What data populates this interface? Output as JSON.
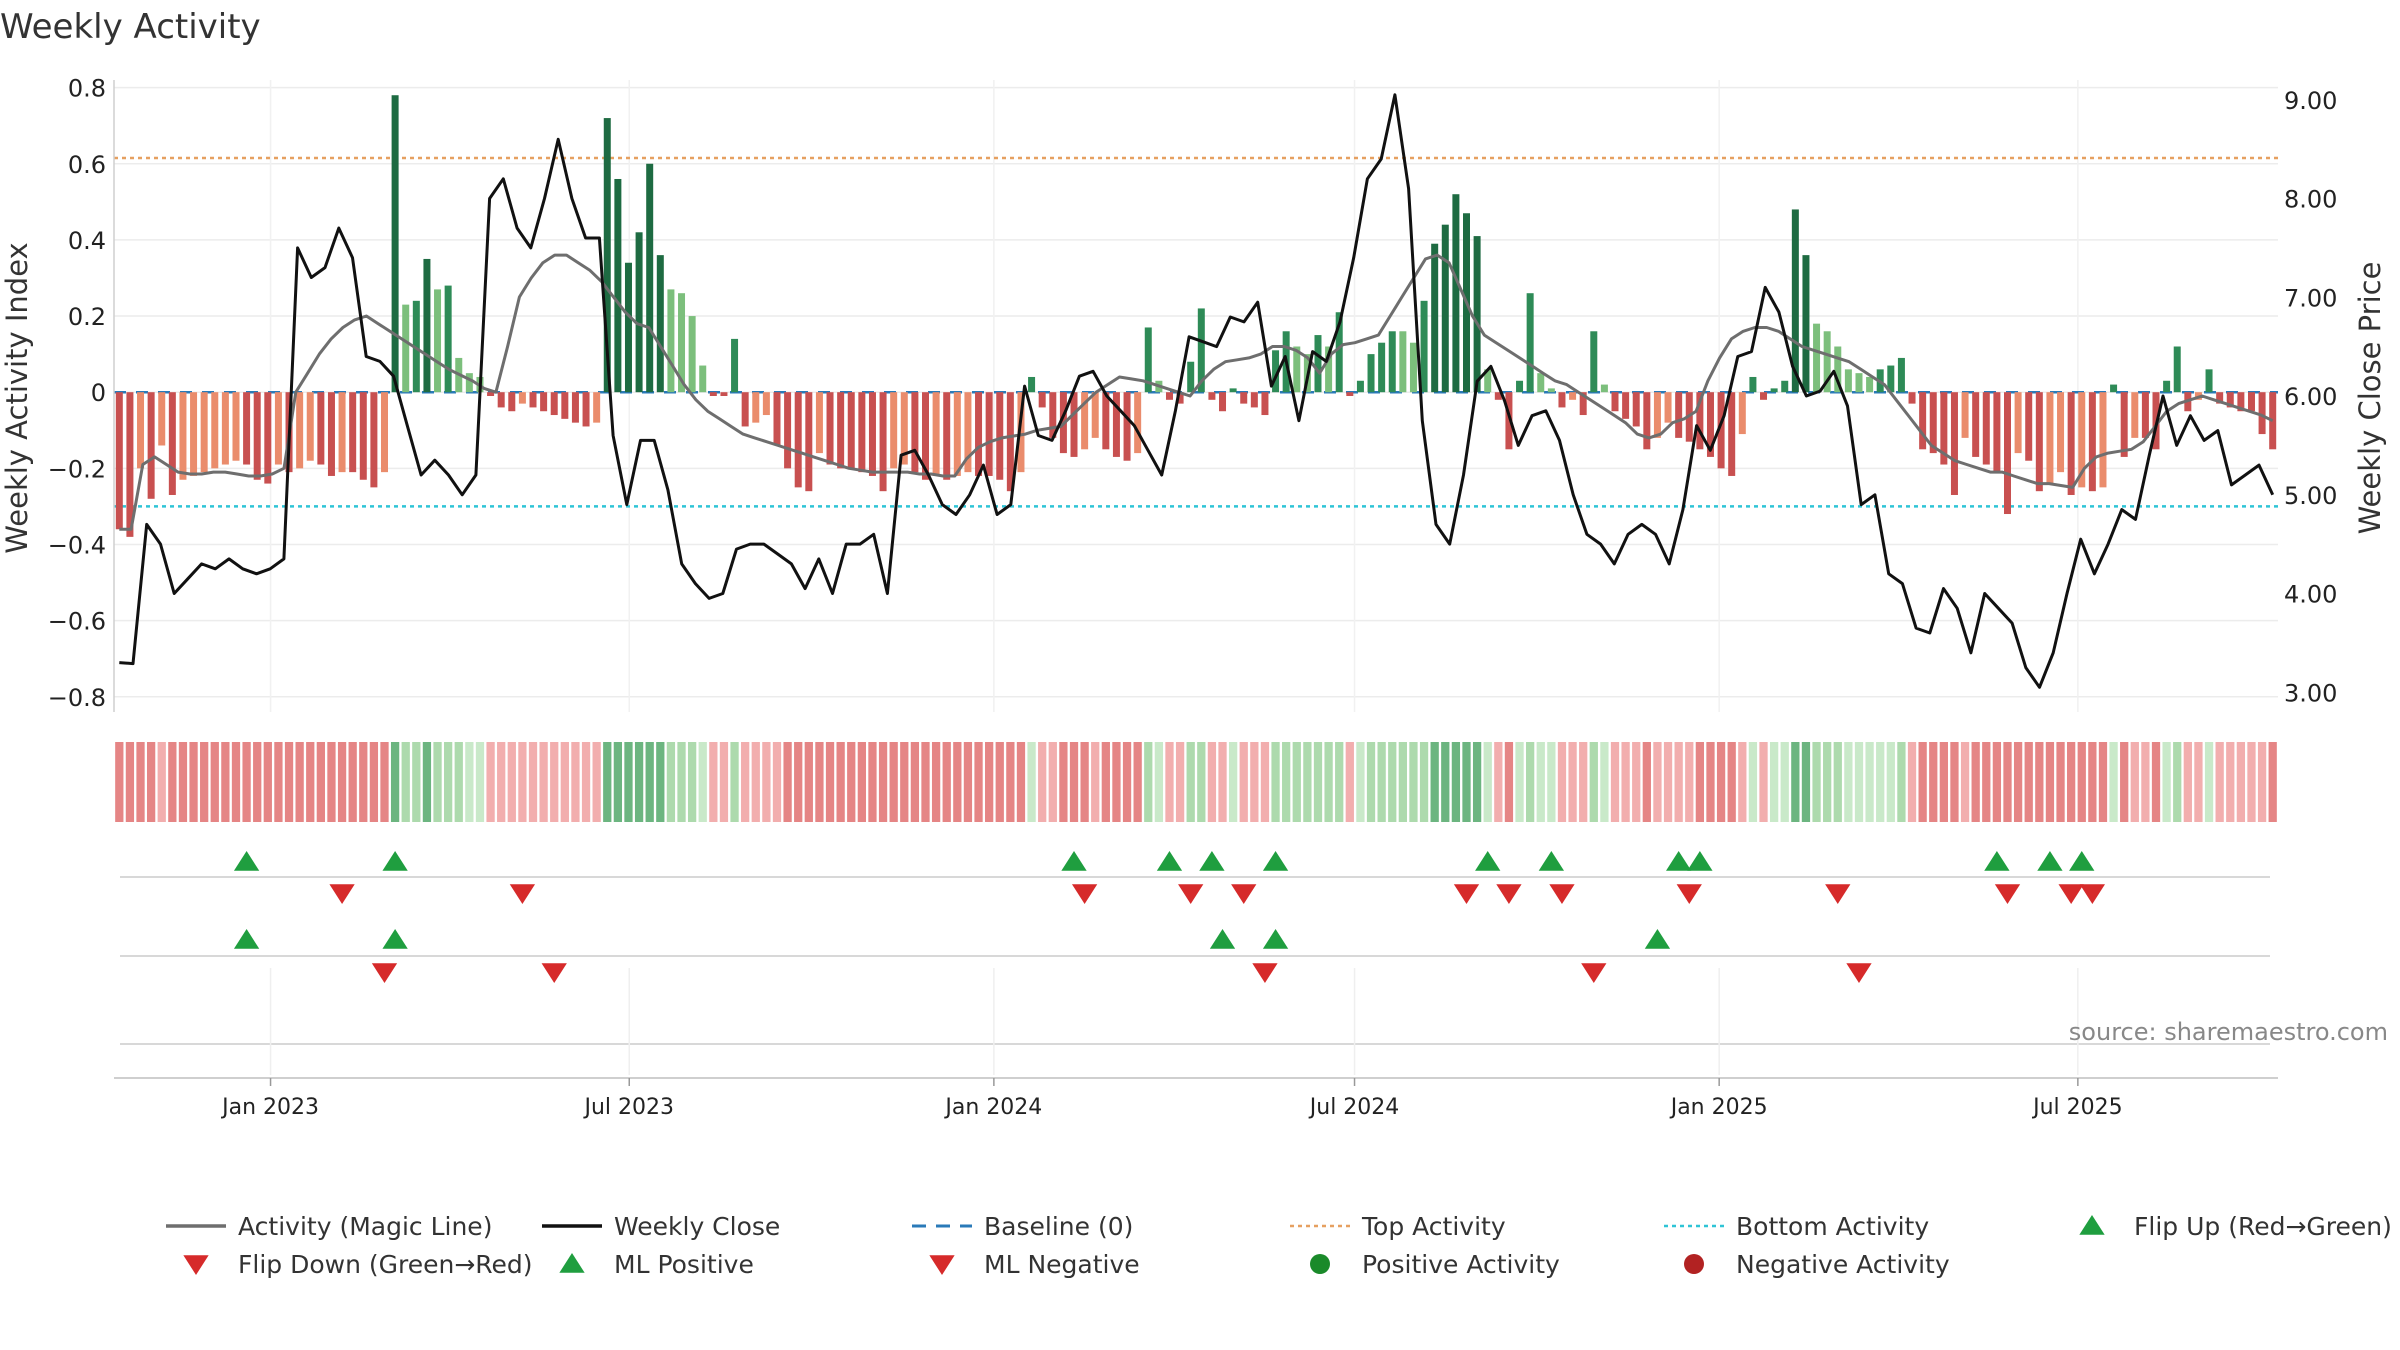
{
  "chart_data": {
    "type": "bar",
    "title": "Weekly Activity",
    "ylabel": "Weekly Activity Index",
    "y2label": "Weekly Close Price",
    "source": "source: sharemaestro.com",
    "ylim": [
      -0.84,
      0.82
    ],
    "y2lim": [
      2.8,
      9.2
    ],
    "x_start": "2022-10-14",
    "x_end": "2025-10-10",
    "yticks": [
      {
        "v": 0.8,
        "label": "0.8"
      },
      {
        "v": 0.6,
        "label": "0.6"
      },
      {
        "v": 0.4,
        "label": "0.4"
      },
      {
        "v": 0.2,
        "label": "0.2"
      },
      {
        "v": 0,
        "label": "0"
      },
      {
        "v": -0.2,
        "label": "−0.2"
      },
      {
        "v": -0.4,
        "label": "−0.4"
      },
      {
        "v": -0.6,
        "label": "−0.6"
      },
      {
        "v": -0.8,
        "label": "−0.8"
      }
    ],
    "y2ticks": [
      {
        "v": 9,
        "label": "9.00"
      },
      {
        "v": 8,
        "label": "8.00"
      },
      {
        "v": 7,
        "label": "7.00"
      },
      {
        "v": 6,
        "label": "6.00"
      },
      {
        "v": 5,
        "label": "5.00"
      },
      {
        "v": 4,
        "label": "4.00"
      },
      {
        "v": 3,
        "label": "3.00"
      }
    ],
    "xticks": [
      {
        "date": "2023-01-01",
        "label": "Jan 2023"
      },
      {
        "date": "2023-07-01",
        "label": "Jul 2023"
      },
      {
        "date": "2024-01-01",
        "label": "Jan 2024"
      },
      {
        "date": "2024-07-01",
        "label": "Jul 2024"
      },
      {
        "date": "2025-01-01",
        "label": "Jan 2025"
      },
      {
        "date": "2025-07-01",
        "label": "Jul 2025"
      }
    ],
    "top_activity": 0.615,
    "bottom_activity": -0.3,
    "activity": [
      -0.36,
      -0.38,
      -0.2,
      -0.28,
      -0.14,
      -0.27,
      -0.23,
      -0.22,
      -0.21,
      -0.2,
      -0.19,
      -0.18,
      -0.19,
      -0.23,
      -0.24,
      -0.19,
      -0.21,
      -0.2,
      -0.18,
      -0.19,
      -0.22,
      -0.21,
      -0.21,
      -0.23,
      -0.25,
      -0.21,
      0.78,
      0.23,
      0.24,
      0.35,
      0.27,
      0.28,
      0.09,
      0.05,
      0.04,
      -0.01,
      -0.04,
      -0.05,
      -0.03,
      -0.04,
      -0.05,
      -0.06,
      -0.07,
      -0.08,
      -0.09,
      -0.08,
      0.72,
      0.56,
      0.34,
      0.42,
      0.6,
      0.36,
      0.27,
      0.26,
      0.2,
      0.07,
      -0.01,
      -0.01,
      0.14,
      -0.09,
      -0.08,
      -0.06,
      -0.14,
      -0.2,
      -0.25,
      -0.26,
      -0.16,
      -0.19,
      -0.2,
      -0.2,
      -0.21,
      -0.22,
      -0.26,
      -0.2,
      -0.19,
      -0.21,
      -0.23,
      -0.22,
      -0.23,
      -0.22,
      -0.21,
      -0.22,
      -0.22,
      -0.23,
      -0.26,
      -0.21,
      0.04,
      -0.04,
      -0.12,
      -0.16,
      -0.17,
      -0.15,
      -0.12,
      -0.15,
      -0.17,
      -0.18,
      -0.16,
      0.17,
      0.03,
      -0.02,
      -0.03,
      0.08,
      0.22,
      -0.02,
      -0.05,
      0.01,
      -0.03,
      -0.04,
      -0.06,
      0.11,
      0.16,
      0.12,
      0.1,
      0.15,
      0.12,
      0.21,
      -0.01,
      0.03,
      0.1,
      0.13,
      0.16,
      0.16,
      0.13,
      0.24,
      0.39,
      0.44,
      0.52,
      0.47,
      0.41,
      0.06,
      -0.02,
      -0.15,
      0.03,
      0.26,
      0.05,
      0.01,
      -0.04,
      -0.02,
      -0.06,
      0.16,
      0.02,
      -0.05,
      -0.07,
      -0.09,
      -0.15,
      -0.12,
      -0.08,
      -0.12,
      -0.13,
      -0.15,
      -0.17,
      -0.2,
      -0.22,
      -0.11,
      0.04,
      -0.02,
      0.01,
      0.03,
      0.48,
      0.36,
      0.18,
      0.16,
      0.12,
      0.06,
      0.05,
      0.04,
      0.06,
      0.07,
      0.09,
      -0.03,
      -0.15,
      -0.16,
      -0.19,
      -0.27,
      -0.12,
      -0.17,
      -0.19,
      -0.21,
      -0.32,
      -0.16,
      -0.18,
      -0.26,
      -0.24,
      -0.21,
      -0.27,
      -0.25,
      -0.26,
      -0.25,
      0.02,
      -0.17,
      -0.12,
      -0.12,
      -0.15,
      0.03,
      0.12,
      -0.05,
      -0.02,
      0.06,
      -0.03,
      -0.04,
      -0.05,
      -0.05,
      -0.11,
      -0.15
    ],
    "activity_colors": [
      "#c85050",
      "#ea8c6c",
      "#b84a4a",
      "#1e6b42",
      "#2e8b57",
      "#7cbf7c"
    ],
    "weekly_close": [
      3.3,
      3.29,
      4.7,
      4.5,
      4.0,
      4.15,
      4.3,
      4.25,
      4.35,
      4.25,
      4.2,
      4.25,
      4.35,
      7.5,
      7.2,
      7.3,
      7.7,
      7.4,
      6.4,
      6.35,
      6.2,
      5.7,
      5.2,
      5.35,
      5.2,
      5.0,
      5.2,
      8.0,
      8.2,
      7.7,
      7.5,
      8.0,
      8.6,
      8.0,
      7.6,
      7.6,
      5.6,
      4.9,
      5.55,
      5.55,
      5.05,
      4.3,
      4.1,
      3.95,
      4.0,
      4.45,
      4.5,
      4.5,
      4.4,
      4.3,
      4.05,
      4.35,
      4.0,
      4.5,
      4.5,
      4.6,
      4.0,
      5.4,
      5.45,
      5.2,
      4.9,
      4.8,
      5.0,
      5.3,
      4.8,
      4.9,
      6.1,
      5.6,
      5.55,
      5.85,
      6.2,
      6.25,
      6.0,
      5.85,
      5.7,
      5.45,
      5.2,
      5.85,
      6.6,
      6.55,
      6.5,
      6.8,
      6.75,
      6.95,
      6.1,
      6.4,
      5.75,
      6.45,
      6.35,
      6.75,
      7.4,
      8.2,
      8.4,
      9.05,
      8.1,
      5.75,
      4.7,
      4.5,
      5.2,
      6.15,
      6.3,
      5.95,
      5.5,
      5.8,
      5.85,
      5.55,
      5.0,
      4.6,
      4.5,
      4.3,
      4.6,
      4.7,
      4.6,
      4.3,
      4.85,
      5.7,
      5.45,
      5.8,
      6.4,
      6.45,
      7.1,
      6.85,
      6.3,
      6.0,
      6.05,
      6.25,
      5.9,
      4.9,
      5.0,
      4.2,
      4.1,
      3.65,
      3.6,
      4.05,
      3.85,
      3.4,
      4.0,
      3.85,
      3.7,
      3.25,
      3.05,
      3.4,
      4.0,
      4.55,
      4.2,
      4.5,
      4.85,
      4.75,
      5.4,
      6.0,
      5.5,
      5.8,
      5.55,
      5.65,
      5.1,
      5.2,
      5.3,
      5.0
    ],
    "magic_line": [
      -0.36,
      -0.36,
      -0.19,
      -0.17,
      -0.19,
      -0.21,
      -0.215,
      -0.215,
      -0.21,
      -0.21,
      -0.215,
      -0.22,
      -0.22,
      -0.215,
      -0.2,
      0.0,
      0.05,
      0.1,
      0.14,
      0.17,
      0.19,
      0.2,
      0.18,
      0.16,
      0.14,
      0.12,
      0.1,
      0.08,
      0.06,
      0.045,
      0.03,
      0.01,
      0.0,
      0.12,
      0.25,
      0.3,
      0.34,
      0.36,
      0.36,
      0.34,
      0.32,
      0.29,
      0.25,
      0.21,
      0.18,
      0.17,
      0.12,
      0.07,
      0.02,
      -0.02,
      -0.05,
      -0.07,
      -0.09,
      -0.11,
      -0.12,
      -0.13,
      -0.14,
      -0.15,
      -0.16,
      -0.17,
      -0.18,
      -0.19,
      -0.2,
      -0.205,
      -0.21,
      -0.21,
      -0.21,
      -0.21,
      -0.215,
      -0.215,
      -0.22,
      -0.22,
      -0.175,
      -0.145,
      -0.13,
      -0.12,
      -0.115,
      -0.11,
      -0.1,
      -0.095,
      -0.09,
      -0.06,
      -0.03,
      0.0,
      0.02,
      0.04,
      0.035,
      0.03,
      0.02,
      0.01,
      0.0,
      -0.01,
      0.03,
      0.06,
      0.08,
      0.085,
      0.09,
      0.1,
      0.12,
      0.12,
      0.11,
      0.09,
      0.05,
      0.1,
      0.125,
      0.13,
      0.14,
      0.15,
      0.2,
      0.25,
      0.3,
      0.35,
      0.36,
      0.34,
      0.27,
      0.2,
      0.15,
      0.13,
      0.11,
      0.09,
      0.07,
      0.05,
      0.03,
      0.02,
      0.0,
      -0.02,
      -0.04,
      -0.06,
      -0.08,
      -0.11,
      -0.12,
      -0.11,
      -0.08,
      -0.07,
      -0.05,
      0.03,
      0.09,
      0.14,
      0.16,
      0.17,
      0.17,
      0.16,
      0.14,
      0.12,
      0.11,
      0.1,
      0.09,
      0.08,
      0.06,
      0.04,
      0.02,
      -0.02,
      -0.06,
      -0.1,
      -0.14,
      -0.16,
      -0.18,
      -0.19,
      -0.2,
      -0.21,
      -0.21,
      -0.22,
      -0.23,
      -0.24,
      -0.24,
      -0.245,
      -0.25,
      -0.2,
      -0.17,
      -0.16,
      -0.155,
      -0.15,
      -0.13,
      -0.09,
      -0.05,
      -0.03,
      -0.02,
      -0.01,
      -0.02,
      -0.03,
      -0.04,
      -0.05,
      -0.06,
      -0.075
    ],
    "heat_strip_colors": [
      "#e07070",
      "#f0a0a0",
      "#9fd49f",
      "#52a86a",
      "#bfe5bf"
    ],
    "flip_up_weeks": [
      12,
      26,
      90,
      99,
      103,
      109,
      129,
      135,
      147,
      149,
      177,
      182,
      185
    ],
    "flip_down_weeks": [
      21,
      38,
      91,
      101,
      106,
      127,
      131,
      136,
      148,
      162,
      178,
      184,
      186
    ],
    "ml_positive_weeks": [
      12,
      26,
      104,
      109,
      145
    ],
    "ml_negative_weeks": [
      25,
      41,
      108,
      139,
      164
    ],
    "legend": [
      {
        "label": "Activity (Magic Line)",
        "symbol": "line",
        "color": "#6e6e6e"
      },
      {
        "label": "Weekly Close",
        "symbol": "line",
        "color": "#111111"
      },
      {
        "label": "Baseline (0)",
        "symbol": "dash",
        "color": "#2a7ab8"
      },
      {
        "label": "Top Activity",
        "symbol": "dot-dash",
        "color": "#e6a060"
      },
      {
        "label": "Bottom Activity",
        "symbol": "dot-dash",
        "color": "#2ec4d6"
      },
      {
        "label": "Flip Up (Red→Green)",
        "symbol": "up",
        "color": "#1f9e3f"
      },
      {
        "label": "Flip Down (Green→Red)",
        "symbol": "down",
        "color": "#d62a2a"
      },
      {
        "label": "ML Positive",
        "symbol": "up",
        "color": "#1f9e3f"
      },
      {
        "label": "ML Negative",
        "symbol": "down",
        "color": "#d62a2a"
      },
      {
        "label": "Positive Activity",
        "symbol": "circle",
        "color": "#1a8a2a"
      },
      {
        "label": "Negative Activity",
        "symbol": "circle",
        "color": "#b22222"
      }
    ]
  }
}
